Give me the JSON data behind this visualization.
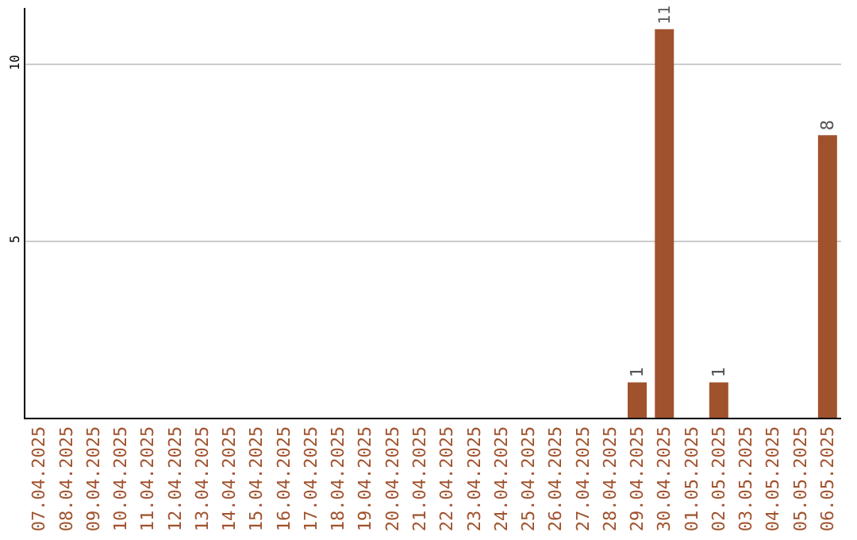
{
  "chart_data": {
    "type": "bar",
    "categories": [
      "07.04.2025",
      "08.04.2025",
      "09.04.2025",
      "10.04.2025",
      "11.04.2025",
      "12.04.2025",
      "13.04.2025",
      "14.04.2025",
      "15.04.2025",
      "16.04.2025",
      "17.04.2025",
      "18.04.2025",
      "19.04.2025",
      "20.04.2025",
      "21.04.2025",
      "22.04.2025",
      "23.04.2025",
      "24.04.2025",
      "25.04.2025",
      "26.04.2025",
      "27.04.2025",
      "28.04.2025",
      "29.04.2025",
      "30.04.2025",
      "01.05.2025",
      "02.05.2025",
      "03.05.2025",
      "04.05.2025",
      "05.05.2025",
      "06.05.2025"
    ],
    "values": [
      0,
      0,
      0,
      0,
      0,
      0,
      0,
      0,
      0,
      0,
      0,
      0,
      0,
      0,
      0,
      0,
      0,
      0,
      0,
      0,
      0,
      0,
      1,
      11,
      0,
      1,
      0,
      0,
      0,
      8
    ],
    "value_labels": [
      null,
      null,
      null,
      null,
      null,
      null,
      null,
      null,
      null,
      null,
      null,
      null,
      null,
      null,
      null,
      null,
      null,
      null,
      null,
      null,
      null,
      null,
      "1",
      "11",
      null,
      "1",
      null,
      null,
      null,
      "8"
    ],
    "color": "#a0522d",
    "ylim": [
      0,
      11.6
    ],
    "yticks": [
      5,
      10
    ],
    "grid": "y"
  }
}
